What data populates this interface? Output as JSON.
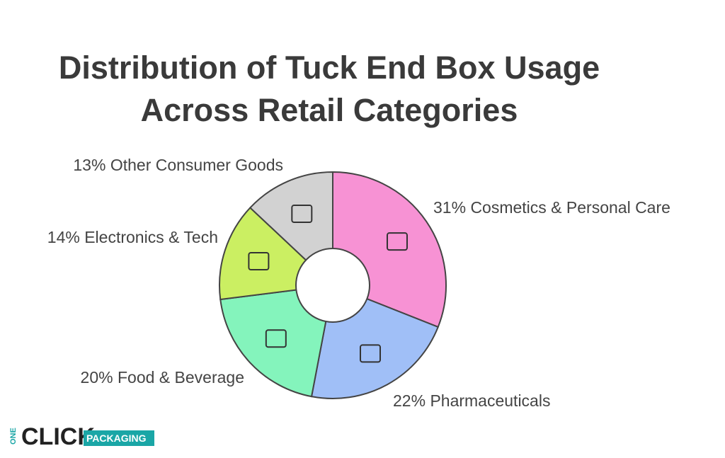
{
  "chart_data": {
    "type": "donut",
    "title": "Distribution of Tuck End Box Usage Across Retail Categories",
    "categories": [
      "Cosmetics & Personal Care",
      "Pharmaceuticals",
      "Food & Beverage",
      "Electronics & Tech",
      "Other Consumer Goods"
    ],
    "values": [
      31,
      22,
      20,
      14,
      13
    ],
    "value_labels": [
      "31%",
      "22%",
      "20%",
      "14%",
      "13%"
    ],
    "colors": [
      "#f792d4",
      "#a0bff7",
      "#84f4bc",
      "#cbef62",
      "#d2d2d2"
    ]
  },
  "logo": {
    "one": "ONE",
    "click": "CLICK",
    "packaging": "PACKAGING"
  }
}
